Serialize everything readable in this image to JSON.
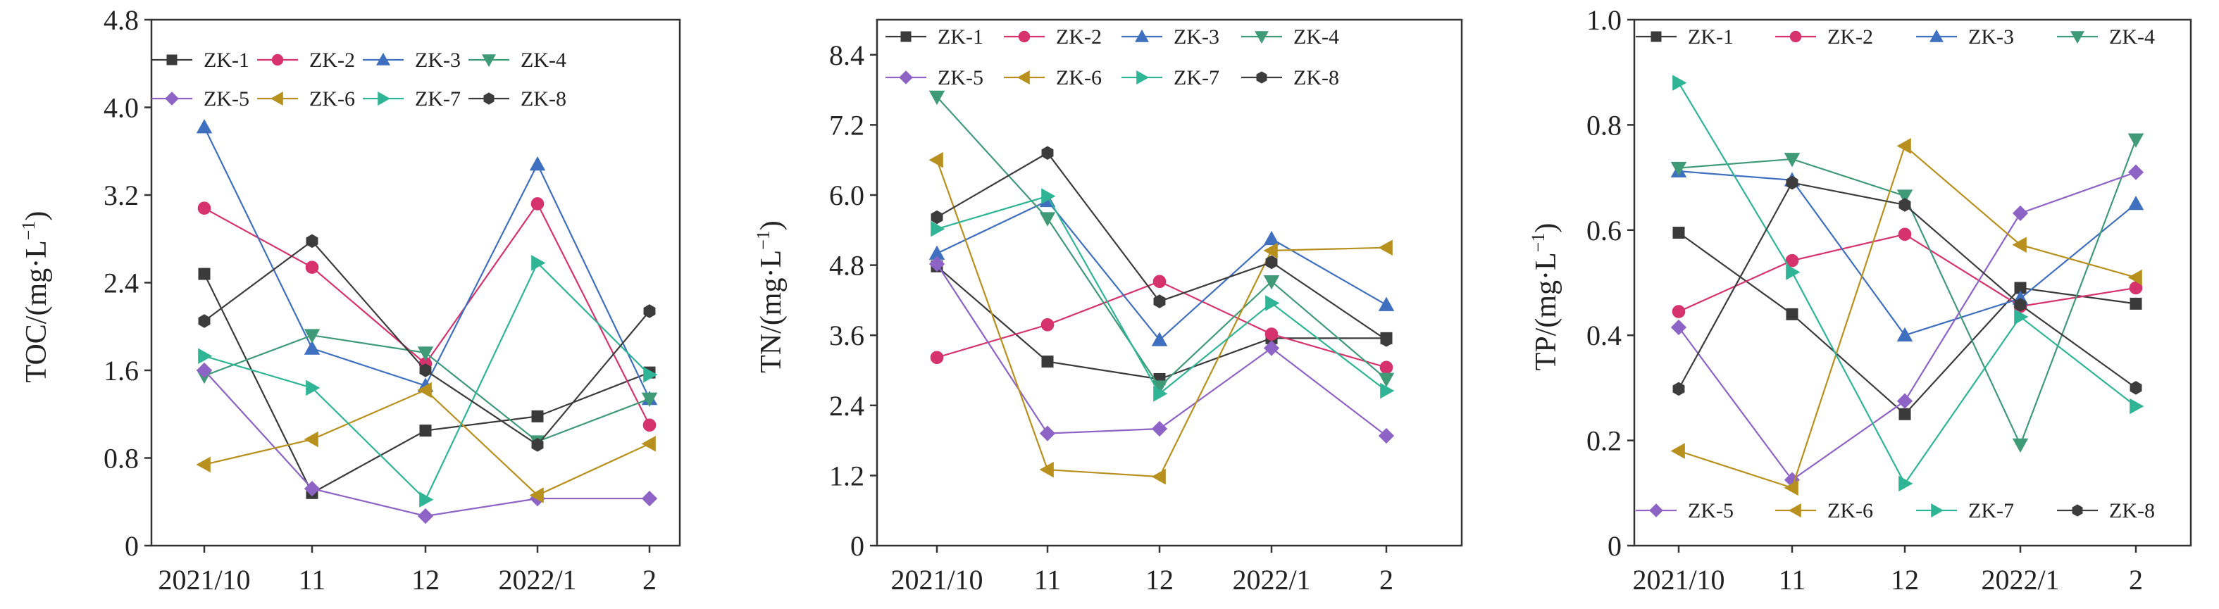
{
  "chart_data": [
    {
      "type": "line",
      "ylabel_main": "TOC/(mg·L",
      "ylabel_sup": "−1",
      "ylabel_close": ")",
      "categories": [
        "2021/10",
        "11",
        "12",
        "2022/1",
        "2"
      ],
      "yticks": [
        "0",
        "0.8",
        "1.6",
        "2.4",
        "3.2",
        "4.0",
        "4.8"
      ],
      "ylim": [
        0,
        4.8
      ],
      "legend_placement": "top, two rows of four",
      "series": [
        {
          "name": "ZK-1",
          "color": "#3a3a3a",
          "marker": "square",
          "values": [
            2.48,
            0.48,
            1.05,
            1.18,
            1.58
          ]
        },
        {
          "name": "ZK-2",
          "color": "#d6336c",
          "marker": "circle",
          "values": [
            3.08,
            2.54,
            1.66,
            3.12,
            1.1
          ]
        },
        {
          "name": "ZK-3",
          "color": "#3f6fbf",
          "marker": "triangle-up",
          "values": [
            3.82,
            1.8,
            1.46,
            3.48,
            1.34
          ]
        },
        {
          "name": "ZK-4",
          "color": "#3f9a78",
          "marker": "triangle-down",
          "values": [
            1.55,
            1.92,
            1.76,
            0.95,
            1.34
          ]
        },
        {
          "name": "ZK-5",
          "color": "#8e63c6",
          "marker": "diamond",
          "values": [
            1.6,
            0.52,
            0.27,
            0.43,
            0.43
          ]
        },
        {
          "name": "ZK-6",
          "color": "#b8901d",
          "marker": "triangle-left",
          "values": [
            0.74,
            0.97,
            1.42,
            0.46,
            0.93
          ]
        },
        {
          "name": "ZK-7",
          "color": "#2fb596",
          "marker": "triangle-right",
          "values": [
            1.73,
            1.44,
            0.42,
            2.58,
            1.56
          ]
        },
        {
          "name": "ZK-8",
          "color": "#3c3c3c",
          "marker": "hexagon",
          "values": [
            2.05,
            2.78,
            1.6,
            0.92,
            2.14
          ]
        }
      ]
    },
    {
      "type": "line",
      "ylabel_main": "TN/(mg·L",
      "ylabel_sup": "−1",
      "ylabel_close": ")",
      "categories": [
        "2021/10",
        "11",
        "12",
        "2022/1",
        "2"
      ],
      "yticks": [
        "0",
        "1.2",
        "2.4",
        "3.6",
        "4.8",
        "6.0",
        "7.2",
        "8.4"
      ],
      "ylim": [
        0,
        9.0
      ],
      "legend_placement": "top, two rows of four",
      "series": [
        {
          "name": "ZK-1",
          "color": "#3a3a3a",
          "marker": "square",
          "values": [
            4.78,
            3.15,
            2.85,
            3.55,
            3.55
          ]
        },
        {
          "name": "ZK-2",
          "color": "#d6336c",
          "marker": "circle",
          "values": [
            3.22,
            3.78,
            4.52,
            3.62,
            3.05
          ]
        },
        {
          "name": "ZK-3",
          "color": "#3f6fbf",
          "marker": "triangle-up",
          "values": [
            5.0,
            5.9,
            3.52,
            5.25,
            4.12
          ]
        },
        {
          "name": "ZK-4",
          "color": "#3f9a78",
          "marker": "triangle-down",
          "values": [
            7.68,
            5.6,
            2.72,
            4.52,
            2.85
          ]
        },
        {
          "name": "ZK-5",
          "color": "#8e63c6",
          "marker": "diamond",
          "values": [
            4.82,
            1.92,
            2.0,
            3.38,
            1.88
          ]
        },
        {
          "name": "ZK-6",
          "color": "#b8901d",
          "marker": "triangle-left",
          "values": [
            6.6,
            1.3,
            1.18,
            5.05,
            5.1
          ]
        },
        {
          "name": "ZK-7",
          "color": "#2fb596",
          "marker": "triangle-right",
          "values": [
            5.42,
            5.98,
            2.6,
            4.15,
            2.65
          ]
        },
        {
          "name": "ZK-8",
          "color": "#3c3c3c",
          "marker": "hexagon",
          "values": [
            5.62,
            6.72,
            4.18,
            4.85,
            3.52
          ]
        }
      ]
    },
    {
      "type": "line",
      "ylabel_main": "TP/(mg·L",
      "ylabel_sup": "−1",
      "ylabel_close": ")",
      "categories": [
        "2021/10",
        "11",
        "12",
        "2022/1",
        "2"
      ],
      "yticks": [
        "0",
        "0.2",
        "0.4",
        "0.6",
        "0.8",
        "1.0"
      ],
      "ylim": [
        0,
        1.0
      ],
      "legend_placement": "top row ZK-1 to ZK-4, bottom row ZK-5 to ZK-8",
      "series": [
        {
          "name": "ZK-1",
          "color": "#3a3a3a",
          "marker": "square",
          "values": [
            0.595,
            0.44,
            0.25,
            0.49,
            0.46
          ]
        },
        {
          "name": "ZK-2",
          "color": "#d6336c",
          "marker": "circle",
          "values": [
            0.445,
            0.542,
            0.592,
            0.455,
            0.49
          ]
        },
        {
          "name": "ZK-3",
          "color": "#3f6fbf",
          "marker": "triangle-up",
          "values": [
            0.712,
            0.695,
            0.4,
            0.47,
            0.65
          ]
        },
        {
          "name": "ZK-4",
          "color": "#3f9a78",
          "marker": "triangle-down",
          "values": [
            0.718,
            0.735,
            0.665,
            0.192,
            0.772
          ]
        },
        {
          "name": "ZK-5",
          "color": "#8e63c6",
          "marker": "diamond",
          "values": [
            0.415,
            0.125,
            0.275,
            0.632,
            0.71
          ]
        },
        {
          "name": "ZK-6",
          "color": "#b8901d",
          "marker": "triangle-left",
          "values": [
            0.18,
            0.11,
            0.76,
            0.572,
            0.51
          ]
        },
        {
          "name": "ZK-7",
          "color": "#2fb596",
          "marker": "triangle-right",
          "values": [
            0.88,
            0.52,
            0.118,
            0.435,
            0.265
          ]
        },
        {
          "name": "ZK-8",
          "color": "#3c3c3c",
          "marker": "hexagon",
          "values": [
            0.298,
            0.69,
            0.648,
            0.458,
            0.3
          ]
        }
      ]
    }
  ]
}
